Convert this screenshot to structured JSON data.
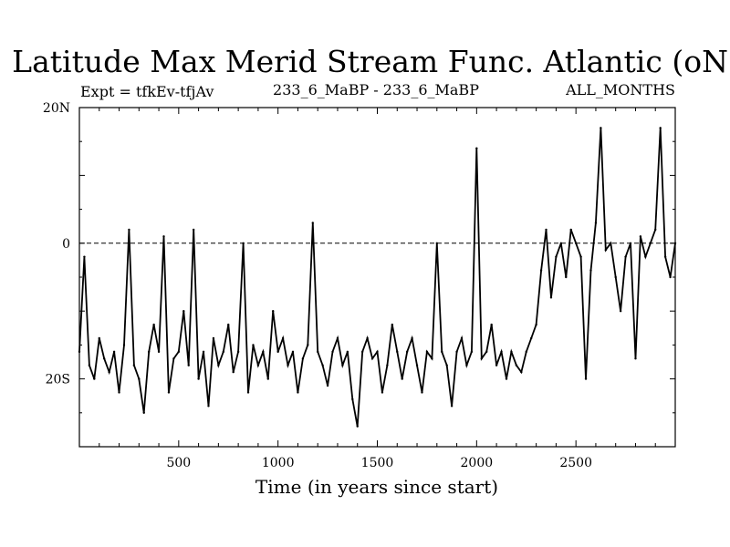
{
  "chart_data": {
    "type": "line",
    "title": "Latitude Max Merid Stream Func. Atlantic (oN)",
    "left_header": "Expt = tfkEv-tfjAv",
    "center_header": "233_6_MaBP - 233_6_MaBP",
    "right_header": "ALL_MONTHS",
    "xlabel": "Time (in years since start)",
    "ylabel": "",
    "xlim": [
      0,
      3000
    ],
    "ylim": [
      -30,
      20
    ],
    "x_ticks": [
      500,
      1000,
      1500,
      2000,
      2500
    ],
    "x_tick_labels": [
      "500",
      "1000",
      "1500",
      "2000",
      "2500"
    ],
    "y_ticks": [
      20,
      0,
      -20
    ],
    "y_tick_labels": [
      "20N",
      "0",
      "20S"
    ],
    "zero_line": true,
    "grid": false,
    "series": [
      {
        "color": "#000000",
        "x": [
          0,
          25,
          50,
          75,
          100,
          125,
          150,
          175,
          200,
          225,
          250,
          275,
          300,
          325,
          350,
          375,
          400,
          425,
          450,
          475,
          500,
          525,
          550,
          575,
          600,
          625,
          650,
          675,
          700,
          725,
          750,
          775,
          800,
          825,
          850,
          875,
          900,
          925,
          950,
          975,
          1000,
          1025,
          1050,
          1075,
          1100,
          1125,
          1150,
          1175,
          1200,
          1225,
          1250,
          1275,
          1300,
          1325,
          1350,
          1375,
          1400,
          1425,
          1450,
          1475,
          1500,
          1525,
          1550,
          1575,
          1600,
          1625,
          1650,
          1675,
          1700,
          1725,
          1750,
          1775,
          1800,
          1825,
          1850,
          1875,
          1900,
          1925,
          1950,
          1975,
          2000,
          2025,
          2050,
          2075,
          2100,
          2125,
          2150,
          2175,
          2200,
          2225,
          2250,
          2275,
          2300,
          2325,
          2350,
          2375,
          2400,
          2425,
          2450,
          2475,
          2500,
          2525,
          2550,
          2575,
          2600,
          2625,
          2650,
          2675,
          2700,
          2725,
          2750,
          2775,
          2800,
          2825,
          2850,
          2875,
          2900,
          2925,
          2950,
          2975,
          3000
        ],
        "values": [
          -16,
          -2,
          -18,
          -20,
          -14,
          -17,
          -19,
          -16,
          -22,
          -15,
          2,
          -18,
          -20,
          -25,
          -16,
          -12,
          -16,
          1,
          -22,
          -17,
          -16,
          -10,
          -18,
          2,
          -20,
          -16,
          -24,
          -14,
          -18,
          -16,
          -12,
          -19,
          -16,
          0,
          -22,
          -15,
          -18,
          -16,
          -20,
          -10,
          -16,
          -14,
          -18,
          -16,
          -22,
          -17,
          -15,
          3,
          -16,
          -18,
          -21,
          -16,
          -14,
          -18,
          -16,
          -23,
          -27,
          -16,
          -14,
          -17,
          -16,
          -22,
          -18,
          -12,
          -16,
          -20,
          -16,
          -14,
          -18,
          -22,
          -16,
          -17,
          0,
          -16,
          -18,
          -24,
          -16,
          -14,
          -18,
          -16,
          14,
          -17,
          -16,
          -12,
          -18,
          -16,
          -20,
          -16,
          -18,
          -19,
          -16,
          -14,
          -12,
          -4,
          2,
          -8,
          -2,
          0,
          -5,
          2,
          0,
          -2,
          -20,
          -4,
          3,
          17,
          -1,
          0,
          -5,
          -10,
          -2,
          0,
          -17,
          1,
          -2,
          0,
          2,
          17,
          -2,
          -5,
          0
        ]
      }
    ]
  }
}
